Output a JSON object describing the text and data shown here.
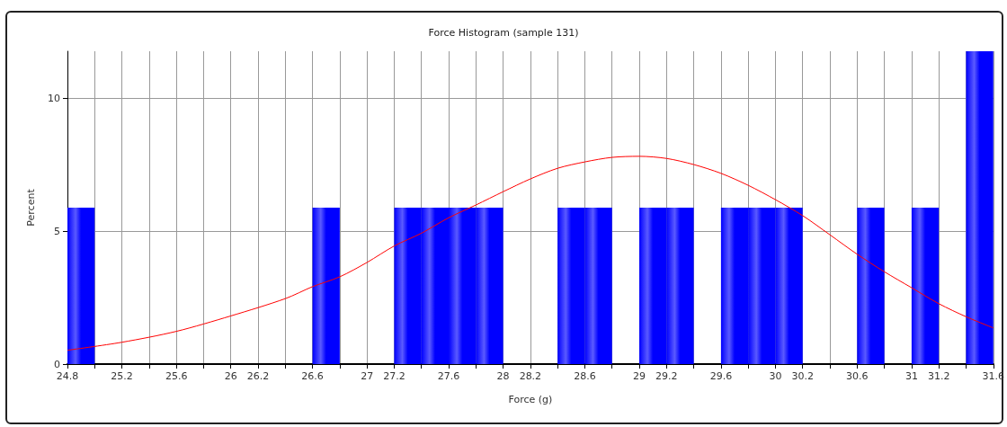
{
  "chart_data": {
    "type": "histogram",
    "title": "Force Histogram (sample 131)",
    "xlabel": "Force (g)",
    "ylabel": "Percent",
    "xlim": [
      24.8,
      31.6
    ],
    "xticks": [
      24.8,
      {
        "value": 25.0,
        "label": null
      },
      25.2,
      {
        "value": 25.4,
        "label": null
      },
      25.6,
      {
        "value": 25.8,
        "label": null
      },
      26,
      26.2,
      {
        "value": 26.4,
        "label": null
      },
      26.6,
      {
        "value": 26.8,
        "label": null
      },
      27,
      27.2,
      {
        "value": 27.4,
        "label": null
      },
      27.6,
      {
        "value": 27.8,
        "label": null
      },
      28,
      28.2,
      {
        "value": 28.4,
        "label": null
      },
      28.6,
      {
        "value": 28.8,
        "label": null
      },
      29,
      29.2,
      {
        "value": 29.4,
        "label": null
      },
      29.6,
      {
        "value": 29.8,
        "label": null
      },
      30,
      30.2,
      {
        "value": 30.4,
        "label": null
      },
      30.6,
      {
        "value": 30.8,
        "label": null
      },
      31,
      31.2,
      {
        "value": 31.4,
        "label": null
      },
      31.6
    ],
    "ylim": [
      0,
      11.76
    ],
    "yticks": [
      0,
      5,
      10
    ],
    "grid": true,
    "color": "#0000ff",
    "bins": [
      24.8,
      25.0,
      25.2,
      25.4,
      25.6,
      25.8,
      26.0,
      26.2,
      26.4,
      26.6,
      26.8,
      27.0,
      27.2,
      27.4,
      27.6,
      27.8,
      28.0,
      28.2,
      28.4,
      28.6,
      28.8,
      29.0,
      29.2,
      29.4,
      29.6,
      29.8,
      30.0,
      30.2,
      30.4,
      30.6,
      30.8,
      31.0,
      31.2,
      31.4,
      31.6
    ],
    "values": [
      5.88,
      0,
      0,
      0,
      0,
      0,
      0,
      0,
      0,
      5.88,
      0,
      0,
      5.88,
      5.88,
      5.88,
      5.88,
      0,
      0,
      5.88,
      5.88,
      0,
      5.88,
      5.88,
      0,
      5.88,
      5.88,
      5.88,
      0,
      0,
      5.88,
      0,
      5.88,
      0,
      11.76
    ],
    "series": [
      {
        "type": "line",
        "color": "#ff0000",
        "marker": "none",
        "x": [
          24.8,
          25.2,
          25.6,
          26.0,
          26.4,
          26.6,
          26.8,
          27.0,
          27.2,
          27.4,
          27.6,
          27.8,
          28.0,
          28.2,
          28.4,
          28.6,
          28.8,
          29.0,
          29.2,
          29.4,
          29.6,
          29.8,
          30.0,
          30.2,
          30.4,
          30.6,
          30.8,
          31.0,
          31.2,
          31.4,
          31.6
        ],
        "values": [
          0.52,
          0.82,
          1.23,
          1.81,
          2.46,
          2.91,
          3.28,
          3.82,
          4.44,
          4.92,
          5.5,
          5.98,
          6.48,
          6.96,
          7.36,
          7.6,
          7.77,
          7.81,
          7.73,
          7.5,
          7.17,
          6.72,
          6.18,
          5.58,
          4.86,
          4.13,
          3.47,
          2.87,
          2.27,
          1.78,
          1.36
        ]
      }
    ]
  }
}
